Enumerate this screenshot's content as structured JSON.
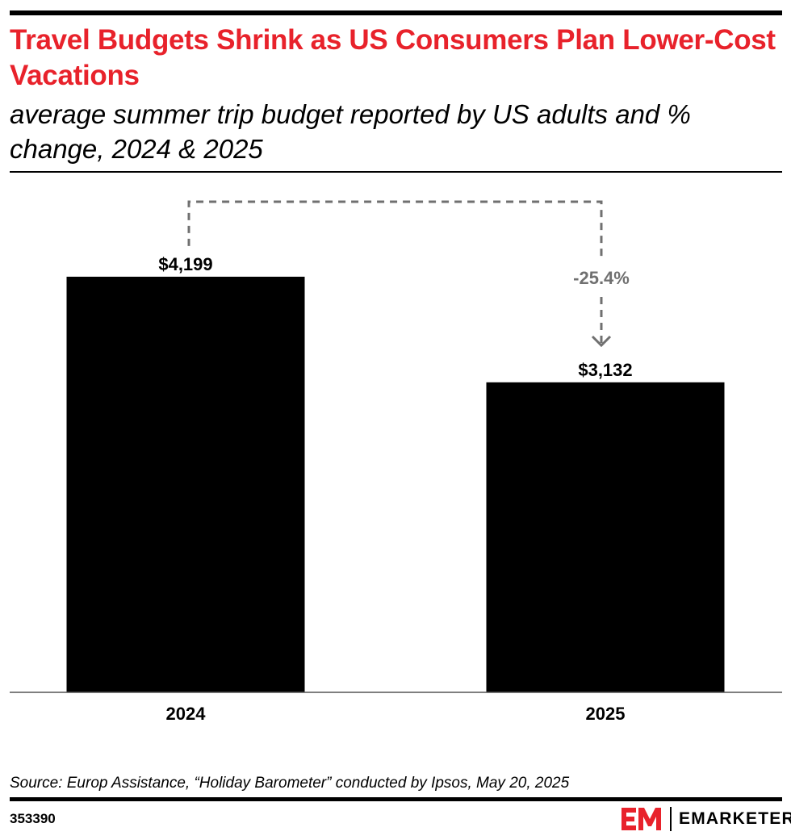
{
  "header": {
    "title": "Travel Budgets Shrink as US Consumers Plan Lower-Cost Vacations",
    "subtitle": "average summer trip budget reported by US adults and % change, 2024 & 2025"
  },
  "chart_data": {
    "type": "bar",
    "title": "Travel Budgets Shrink as US Consumers Plan Lower-Cost Vacations",
    "subtitle": "average summer trip budget reported by US adults and % change, 2024 & 2025",
    "categories": [
      "2024",
      "2025"
    ],
    "values": [
      4199,
      3132
    ],
    "value_labels": [
      "$4,199",
      "$3,132"
    ],
    "change_label": "-25.4%",
    "xlabel": "",
    "ylabel": "",
    "ylim": [
      0,
      5250
    ],
    "grid": false,
    "bar_color": "#000000",
    "annotation_color": "#707070"
  },
  "footer": {
    "source": "Source: Europ Assistance, “Holiday Barometer” conducted by Ipsos, May 20, 2025",
    "chart_id": "353390",
    "brand": "EMARKETER",
    "brand_color": "#e8222b"
  }
}
